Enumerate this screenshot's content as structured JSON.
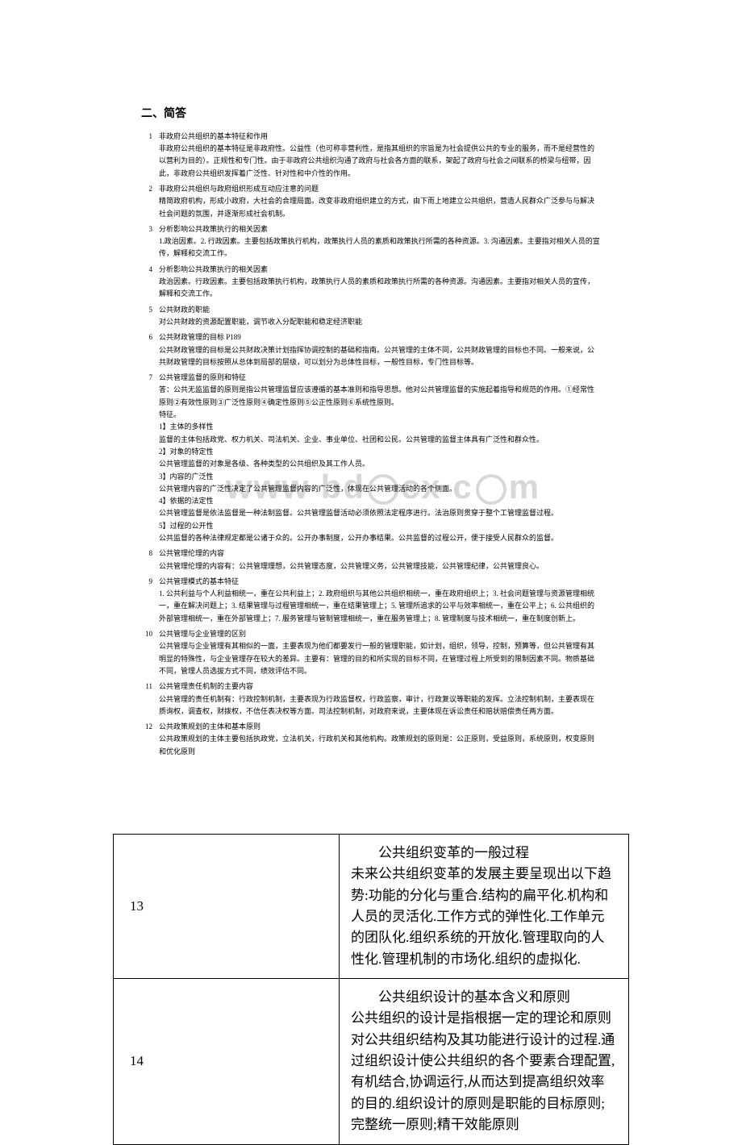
{
  "section_heading": "二、简答",
  "watermark_text": "www bd    cx c    m",
  "items": [
    {
      "num": "1",
      "title": "非政府公共组织的基本特征和作用",
      "body": "非政府公共组织的基本特征是非政府性。公益性（也可称非营利性，是指其组织的宗旨是为社会提供公共的专业的服务，而不是经营性的以营利为目的）。正规性和专门性。由于非政府公共组织沟通了政府与社会各方面的联系，架起了政府与社会之间联系的桥梁与纽带，因此，非政府公共组织发挥着广泛性、针对性和中介性的作用。"
    },
    {
      "num": "2",
      "title": "非政府公共组织与政府组织形成互动应注意的问题",
      "body": "精简政府机构，形成小政府，大社会的合理局面。改变非政府组织建立的方式，由下而上地建立公共组织，营造人民群众广泛参与与解决社会问题的氛围，并逐渐形成社会机制。"
    },
    {
      "num": "3",
      "title": "分析影响公共政策执行的相关因素",
      "body": "1.政治因素。2. 行政因素。主要包括政策执行机构，政策执行人员的素质和政策执行所需的各种资源。3. 沟通因素。主要指对相关人员的宣传，解释和交流工作。"
    },
    {
      "num": "4",
      "title": "分析影响公共政策执行的相关因素",
      "body": "政治因素。行政因素。主要包括政策执行机构，政策执行人员的素质和政策执行所需的各种资源。沟通因素。主要指对相关人员的宣传，解释和交流工作。"
    },
    {
      "num": "5",
      "title": "公共财政的职能",
      "body": "对公共财政的资源配置职能，调节收入分配职能和稳定经济职能"
    },
    {
      "num": "6",
      "title": "公共财政管理的目标 P189",
      "body": "公共财政管理的目标是公共财政决策计划指挥协调控制的基础和指南。公共管理的主体不同，公共财政管理的目标也不同。一般来说，公共财政管理的目标按照从总体到局部的层级，可以划分为总体性目标，一般性目标，专门性目标等。"
    },
    {
      "num": "7",
      "title": "公共管理监督的原则和特征",
      "lines": [
        "答：公共无监监督的原则是指公共管理监督应该遵循的基本准则和指导思想。他对公共管理监督的实施起着指导和规范的作用。①经常性原则②有效性原则③广泛性原则④确定性原则⑤公正性原则⑥系统性原则。",
        "特征。",
        "1】主体的多样性",
        "监督的主体包括政党、权力机关、司法机关、企业、事业单位、社团和公民。公共管理的监督主体具有广泛性和群众性。",
        "2】对象的特定性",
        "公共管理监督的对象是各级、各种类型的公共组织及其工作人员。",
        "3】内容的广泛性",
        "公共管理内容的广泛性决定了公共管理监督内容的广泛性，体现在公共管理活动的各个侧面。",
        "4】依据的法定性",
        "公共管理监督是依法监督是一种法制监督。公共管理监督活动必须依照法定程序进行。法治原则贯穿于整个工管理监督过程。",
        "5】过程的公开性",
        "公共监督的各种法律规定都是公诸于众的。公开办事制度，公开办事结果。公共监督的过程公开，便于接受人民群众的监督。"
      ]
    },
    {
      "num": "8",
      "title": "公共管理伦理的内容",
      "body": "公共管理伦理的内容有：公共管理理想，公共管理态度，公共管理义务，公共管理技能，公共管理纪律，公共管理良心。"
    },
    {
      "num": "9",
      "title": "公共管理模式的基本特征",
      "body": "1. 公共利益与个人利益相统一，重在公共利益上；2. 政府组织与其他公共组织相统一，重在政府组织上；3. 社会问题管理与资源管理相统一，重在解决问题上；3. 结果管理与过程管理相统一，重在结果管理上；5. 管理所追求的公平与效率相统一，重在公平上；6. 公共组织的外部管理相统一，重在外部管理上；7. 服务管理与管制管理相统一，重在服务管理上；8. 管理制度与技术相统一，重在制度创新上。"
    },
    {
      "num": "10",
      "title": "公共管理与企业管理的区别",
      "body": "公共管理与企业管理有其相似的一面，主要表现为他们都要发行一般的管理职能，如计划，组织，领导，控制，预算等，但公共管理有其明显的特殊性，与企业管理存在较大的差异。主要有：管理的目的和所实现的目标不同，在管理过程上所受到的限制因素不同。物质基础不同，管理人员选拔方式不同，绩效评估不同。"
    },
    {
      "num": "11",
      "title": "公共管理责任机制的主要内容",
      "body": "公共管理的责任机制有：行政控制机制，主要表现为行政监督权，行政监察，审计，行政复议等职能的发挥。立法控制机制，主要表现在质询权，调查权，财拨权，不信任表决权等方面。司法控制机制，对政府来说，主要体现在诉讼责任和赔状赔偿责任两方面。"
    },
    {
      "num": "12",
      "title": "公共政策规划的主体和基本原则",
      "body": "公共政策规划的主体主要包括执政党，立法机关，行政机关和其他机构。政策规划的原则是：公正原则，受益原则，系统原则，权变原则和优化原则"
    }
  ],
  "table_rows": [
    {
      "num": "13",
      "title": "公共组织变革的一般过程",
      "body": "未来公共组织变革的发展主要呈现出以下趋势:功能的分化与重合.结构的扁平化.机构和人员的灵活化.工作方式的弹性化.工作单元的团队化.组织系统的开放化.管理取向的人性化.管理机制的市场化.组织的虚拟化."
    },
    {
      "num": "14",
      "title": "公共组织设计的基本含义和原则",
      "body": "公共组织的设计是指根据一定的理论和原则对公共组织结构及其功能进行设计的过程.通过组织设计使公共组织的各个要素合理配置,有机结合,协调运行,从而达到提高组织效率的目的.组织设计的原则是职能的目标原则;完整统一原则;精干效能原则"
    }
  ]
}
